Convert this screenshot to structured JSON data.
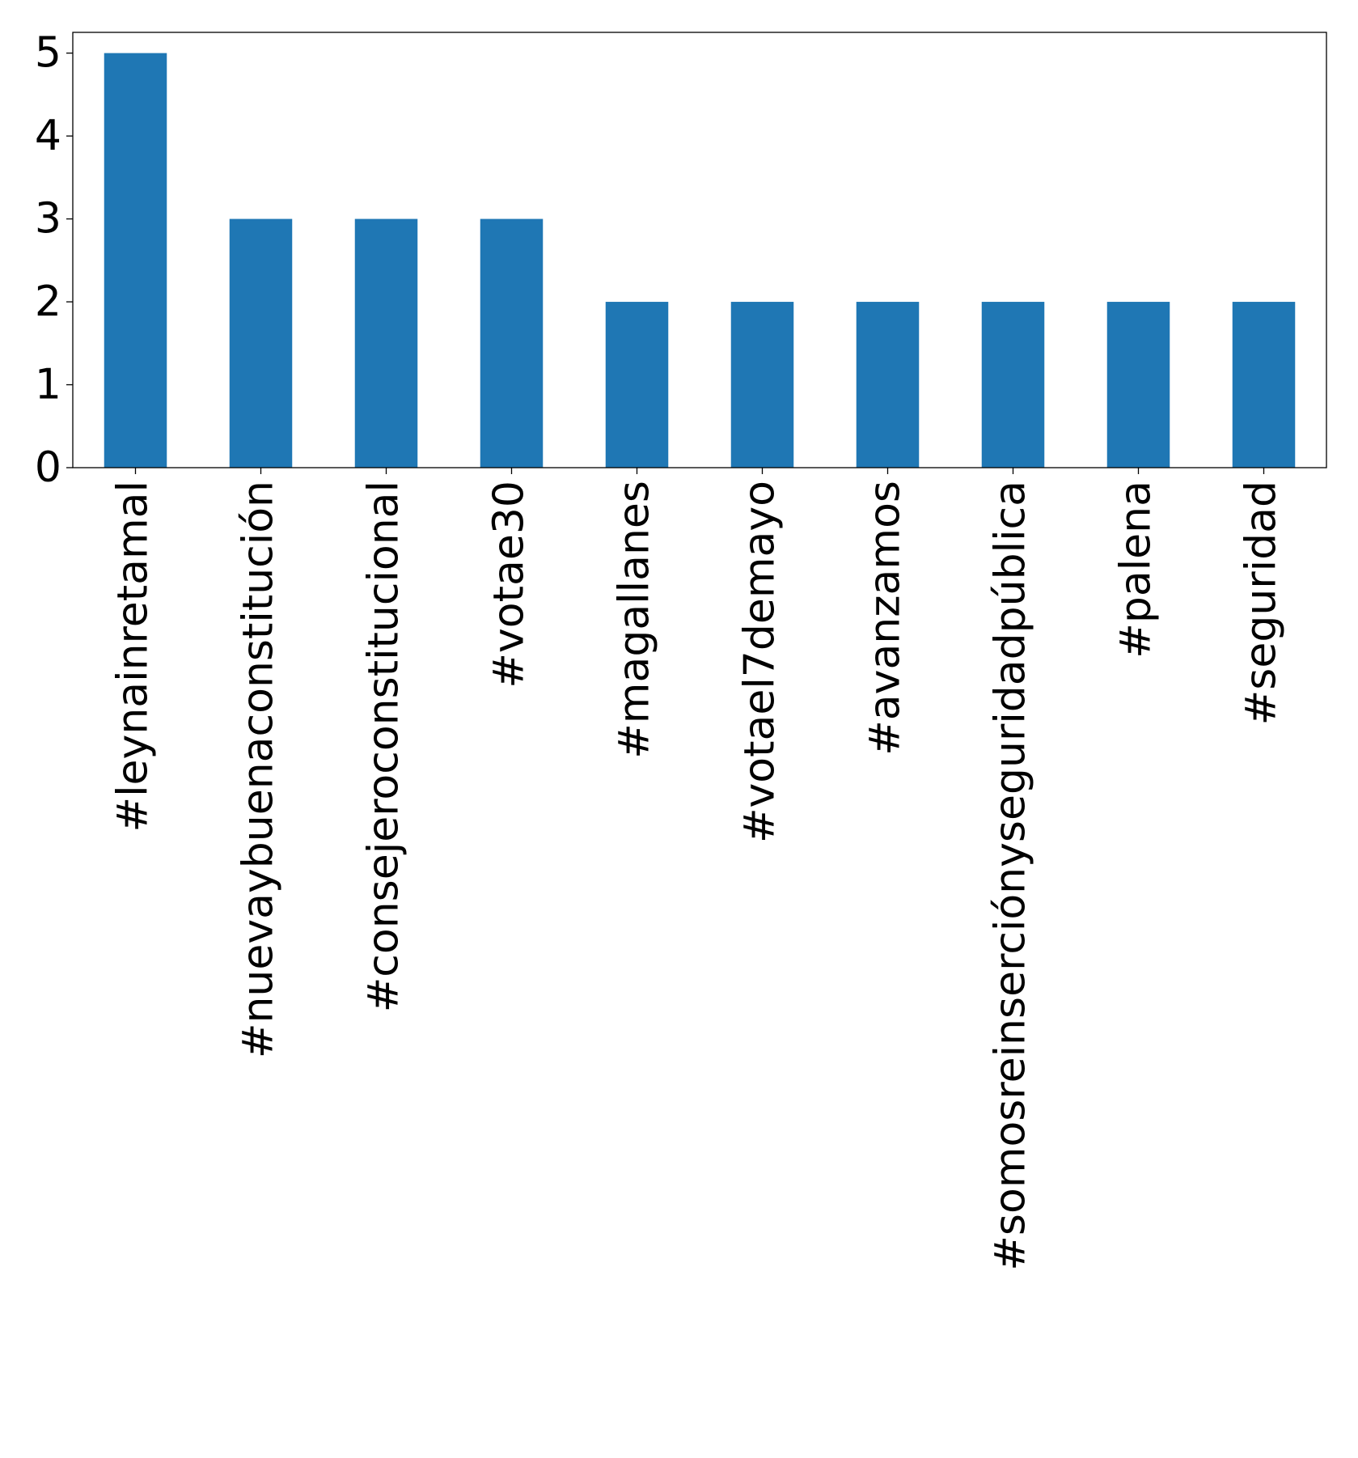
{
  "chart_data": {
    "type": "bar",
    "categories": [
      "#leynainretamal",
      "#nuevaybuenaconstitución",
      "#consejeroconstitucional",
      "#votae30",
      "#magallanes",
      "#votael7demayo",
      "#avanzamos",
      "#somosreinserciónyseguridadpública",
      "#palena",
      "#seguridad"
    ],
    "values": [
      5,
      3,
      3,
      3,
      2,
      2,
      2,
      2,
      2,
      2
    ],
    "yticks": [
      "0",
      "1",
      "2",
      "3",
      "4",
      "5"
    ],
    "ylim": [
      0,
      5.25
    ],
    "bar_color": "#1f77b4",
    "grid": false,
    "title": "",
    "xlabel": "",
    "ylabel": ""
  }
}
